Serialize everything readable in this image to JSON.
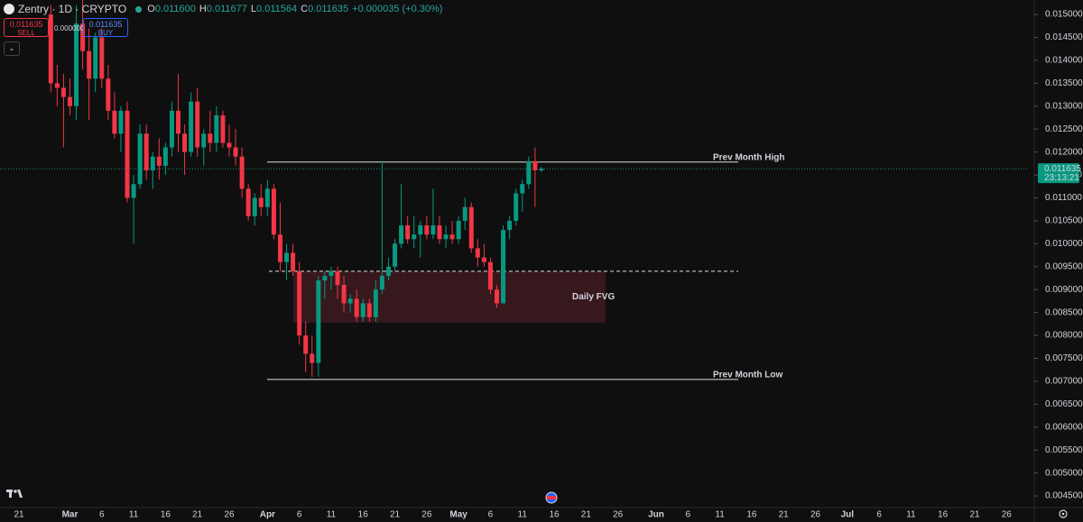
{
  "header": {
    "symbol": "Zentry · 1D · CRYPTO",
    "ohlc": [
      [
        "O",
        "0.011600"
      ],
      [
        "H",
        "0.011677"
      ],
      [
        "L",
        "0.011564"
      ],
      [
        "C",
        "0.011635"
      ]
    ],
    "change": "+0.000035 (+0.30%)"
  },
  "trade_panel": {
    "sell_price": "0.011635",
    "sell": "SELL",
    "spread": "0.000000",
    "buy_price": "0.011635",
    "buy": "BUY"
  },
  "chart_data": {
    "type": "candlestick",
    "up_color": "#089981",
    "down_color": "#f23645",
    "x": [
      "21",
      null,
      null,
      null,
      null,
      null,
      null,
      null,
      "Mar",
      null,
      null,
      null,
      null,
      "6",
      null,
      null,
      null,
      null,
      "11",
      null,
      null,
      null,
      null,
      "16",
      null,
      null,
      null,
      null,
      "21",
      null,
      null,
      null,
      null,
      "26",
      null,
      null,
      null,
      null,
      null,
      "Apr",
      null,
      null,
      null,
      null,
      "6",
      null,
      null,
      null,
      null,
      "11",
      null,
      null,
      null,
      null,
      "16",
      null,
      null,
      null,
      null,
      "21",
      null,
      null,
      null,
      null,
      "26",
      null,
      null,
      null,
      null,
      "May",
      null,
      null,
      null,
      null,
      "6",
      null,
      null,
      null,
      null,
      "11",
      null,
      null,
      null,
      null,
      "16",
      null,
      null,
      null,
      null,
      "21",
      null,
      null,
      null,
      null,
      "26",
      null,
      null,
      null,
      null,
      null,
      "Jun",
      null,
      null,
      null,
      null,
      "6",
      null,
      null,
      null,
      null,
      "11",
      null,
      null,
      null,
      null,
      "16",
      null,
      null,
      null,
      null,
      "21",
      null,
      null,
      null,
      null,
      "26",
      null,
      null,
      null,
      null,
      "Jul",
      null,
      null,
      null,
      null,
      "6",
      null,
      null,
      null,
      null,
      "11",
      null,
      null,
      null,
      null,
      "16",
      null,
      null,
      null,
      null,
      "21",
      null,
      null,
      null,
      null,
      "26"
    ],
    "open": [
      null,
      null,
      null,
      null,
      null,
      0.015,
      0.0135,
      0.0134,
      0.0132,
      0.013,
      0.0148,
      0.0142,
      0.0136,
      0.0145,
      0.0136,
      0.0129,
      0.0124,
      0.0129,
      0.011,
      0.0113,
      0.0124,
      0.0116,
      0.0119,
      0.0117,
      0.0121,
      0.0129,
      0.0124,
      0.012,
      0.0131,
      0.0121,
      0.0124,
      0.0122,
      0.0128,
      0.0122,
      0.0121,
      0.0119,
      0.0112,
      0.0106,
      0.011,
      0.0108,
      0.0112,
      0.0102,
      0.0096,
      0.0098,
      0.0094,
      0.008,
      0.0076,
      0.0074,
      0.0092,
      0.0093,
      0.0094,
      0.0091,
      0.0087,
      0.0088,
      0.0084,
      0.0087,
      0.0084,
      0.009,
      0.0093,
      0.0095,
      0.01,
      0.0104,
      0.0101,
      0.0102,
      0.0104,
      0.0102,
      0.0104,
      0.0101,
      0.0102,
      0.0101,
      0.0105,
      0.0108,
      0.0099,
      0.0097,
      0.0096,
      0.009,
      0.0087,
      0.0103,
      0.0105,
      0.0111,
      0.0113,
      0.0118,
      0.0116,
      null,
      null,
      null,
      null,
      null,
      null,
      null,
      null,
      null,
      null,
      null,
      null,
      null,
      null,
      null,
      null,
      null,
      null,
      null,
      null,
      null,
      null,
      null,
      null,
      null,
      null,
      null,
      null,
      null,
      null,
      null,
      null,
      null,
      null,
      null,
      null,
      null,
      null,
      null,
      null,
      null,
      null,
      null,
      null,
      null,
      null,
      null,
      null,
      null,
      null,
      null,
      null,
      null,
      null,
      null,
      null,
      null,
      null,
      null,
      null,
      null,
      null,
      null,
      null,
      null,
      null,
      null,
      null,
      null,
      null,
      null,
      null,
      null
    ],
    "high": [
      null,
      null,
      null,
      null,
      null,
      0.0152,
      0.0139,
      0.0137,
      0.0136,
      0.0152,
      0.0154,
      0.0147,
      0.0146,
      0.0147,
      0.0139,
      0.0133,
      0.013,
      0.0131,
      0.0115,
      0.0126,
      0.0126,
      0.012,
      0.0123,
      0.0122,
      0.0131,
      0.0137,
      0.0126,
      0.0133,
      0.0134,
      0.0125,
      0.0129,
      0.013,
      0.0129,
      0.0126,
      0.0125,
      0.0121,
      0.0113,
      0.0111,
      0.0113,
      0.0114,
      0.0113,
      0.0109,
      0.01,
      0.01,
      0.0096,
      0.0083,
      0.008,
      0.0093,
      0.0094,
      0.0095,
      0.0095,
      0.0093,
      0.0089,
      0.009,
      0.0088,
      0.0088,
      0.0092,
      0.0118,
      0.0097,
      0.0101,
      0.0113,
      0.0106,
      0.0106,
      0.0105,
      0.0106,
      0.0112,
      0.0106,
      0.0104,
      0.0105,
      0.0106,
      0.011,
      0.0109,
      0.0101,
      0.01,
      0.0097,
      0.0091,
      0.0104,
      0.0106,
      0.0112,
      0.0114,
      0.0119,
      0.0121,
      0.011677,
      null,
      null,
      null,
      null,
      null,
      null,
      null,
      null,
      null,
      null,
      null,
      null,
      null,
      null,
      null,
      null,
      null,
      null,
      null,
      null,
      null,
      null,
      null,
      null,
      null,
      null,
      null,
      null,
      null,
      null,
      null,
      null,
      null,
      null,
      null,
      null,
      null,
      null,
      null,
      null,
      null,
      null,
      null,
      null,
      null,
      null,
      null,
      null,
      null,
      null,
      null,
      null,
      null,
      null,
      null,
      null,
      null,
      null,
      null,
      null,
      null,
      null,
      null,
      null,
      null,
      null,
      null,
      null,
      null,
      null,
      null,
      null,
      null
    ],
    "low": [
      null,
      null,
      null,
      null,
      null,
      0.0133,
      0.013,
      0.0121,
      0.0128,
      0.0127,
      0.0138,
      0.0127,
      0.0133,
      0.0134,
      0.0127,
      0.0123,
      0.012,
      0.0109,
      0.01,
      0.0112,
      0.0114,
      0.0112,
      0.0114,
      0.0115,
      0.0119,
      0.012,
      0.0115,
      0.0119,
      0.0119,
      0.0117,
      0.012,
      0.012,
      0.0121,
      0.0119,
      0.0117,
      0.011,
      0.0105,
      0.0104,
      0.0106,
      0.0106,
      0.0101,
      0.0094,
      0.0092,
      0.0093,
      0.0078,
      0.0072,
      0.0071,
      0.0071,
      0.0088,
      0.009,
      0.0088,
      0.0085,
      0.0085,
      0.0083,
      0.0083,
      0.0083,
      0.0083,
      0.0089,
      0.0092,
      0.0094,
      0.0099,
      0.01,
      0.0099,
      0.0097,
      0.0101,
      0.0101,
      0.01,
      0.0099,
      0.01,
      0.01,
      0.0103,
      0.0098,
      0.0095,
      0.0095,
      0.0089,
      0.0086,
      0.0087,
      0.0101,
      0.0104,
      0.0107,
      0.0112,
      0.0108,
      0.011564,
      null,
      null,
      null,
      null,
      null,
      null,
      null,
      null,
      null,
      null,
      null,
      null,
      null,
      null,
      null,
      null,
      null,
      null,
      null,
      null,
      null,
      null,
      null,
      null,
      null,
      null,
      null,
      null,
      null,
      null,
      null,
      null,
      null,
      null,
      null,
      null,
      null,
      null,
      null,
      null,
      null,
      null,
      null,
      null,
      null,
      null,
      null,
      null,
      null,
      null,
      null,
      null,
      null,
      null,
      null,
      null,
      null,
      null,
      null,
      null,
      null,
      null,
      null,
      null,
      null,
      null,
      null,
      null,
      null,
      null,
      null,
      null,
      null
    ],
    "close": [
      null,
      null,
      null,
      null,
      null,
      0.0135,
      0.0134,
      0.0132,
      0.013,
      0.0148,
      0.0142,
      0.0136,
      0.0145,
      0.0136,
      0.0129,
      0.0124,
      0.0129,
      0.011,
      0.0113,
      0.0124,
      0.0116,
      0.0119,
      0.0117,
      0.0121,
      0.0129,
      0.0124,
      0.012,
      0.0131,
      0.0121,
      0.0124,
      0.0122,
      0.0128,
      0.0122,
      0.0121,
      0.0119,
      0.0112,
      0.0106,
      0.011,
      0.0108,
      0.0112,
      0.0102,
      0.0096,
      0.0098,
      0.0094,
      0.008,
      0.0076,
      0.0074,
      0.0092,
      0.0093,
      0.0094,
      0.0091,
      0.0087,
      0.0088,
      0.0084,
      0.0087,
      0.0084,
      0.009,
      0.0093,
      0.0095,
      0.01,
      0.0104,
      0.0101,
      0.0102,
      0.0104,
      0.0102,
      0.0104,
      0.0101,
      0.0102,
      0.0101,
      0.0105,
      0.0108,
      0.0099,
      0.0097,
      0.0096,
      0.009,
      0.0087,
      0.0103,
      0.0105,
      0.0111,
      0.0113,
      0.0118,
      0.0116,
      0.011635,
      null,
      null,
      null,
      null,
      null,
      null,
      null,
      null,
      null,
      null,
      null,
      null,
      null,
      null,
      null,
      null,
      null,
      null,
      null,
      null,
      null,
      null,
      null,
      null,
      null,
      null,
      null,
      null,
      null,
      null,
      null,
      null,
      null,
      null,
      null,
      null,
      null,
      null,
      null,
      null,
      null,
      null,
      null,
      null,
      null,
      null,
      null,
      null,
      null,
      null,
      null,
      null,
      null,
      null,
      null,
      null,
      null,
      null,
      null,
      null,
      null,
      null,
      null,
      null,
      null,
      null,
      null,
      null,
      null,
      null,
      null,
      null,
      null
    ],
    "ylim": [
      0.004266,
      0.015315
    ],
    "yticks": [
      {
        "value": 0.015,
        "label": "0.015000"
      },
      {
        "value": 0.0145,
        "label": "0.014500"
      },
      {
        "value": 0.014,
        "label": "0.014000"
      },
      {
        "value": 0.0135,
        "label": "0.013500"
      },
      {
        "value": 0.013,
        "label": "0.013000"
      },
      {
        "value": 0.0125,
        "label": "0.012500"
      },
      {
        "value": 0.012,
        "label": "0.012000"
      },
      {
        "value": 0.0115,
        "label": "0.011500"
      },
      {
        "value": 0.011,
        "label": "0.011000"
      },
      {
        "value": 0.0105,
        "label": "0.010500"
      },
      {
        "value": 0.01,
        "label": "0.010000"
      },
      {
        "value": 0.0095,
        "label": "0.009500"
      },
      {
        "value": 0.009,
        "label": "0.009000"
      },
      {
        "value": 0.0085,
        "label": "0.008500"
      },
      {
        "value": 0.008,
        "label": "0.008000"
      },
      {
        "value": 0.0075,
        "label": "0.007500"
      },
      {
        "value": 0.007,
        "label": "0.007000"
      },
      {
        "value": 0.0065,
        "label": "0.006500"
      },
      {
        "value": 0.006,
        "label": "0.006000"
      },
      {
        "value": 0.0055,
        "label": "0.005500"
      },
      {
        "value": 0.005,
        "label": "0.005000"
      },
      {
        "value": 0.0045,
        "label": "0.004500"
      }
    ],
    "levels": [
      {
        "label": "Prev Month High",
        "value": 0.01178
      },
      {
        "label": "Prev Month Low",
        "value": 0.00704
      }
    ],
    "dashed_level": 0.0094,
    "fvg": {
      "label": "Daily FVG",
      "top": 0.0094,
      "bottom": 0.00828
    },
    "last_price": {
      "value": 0.011635,
      "label": "0.011635",
      "countdown": "23:13:21"
    }
  }
}
